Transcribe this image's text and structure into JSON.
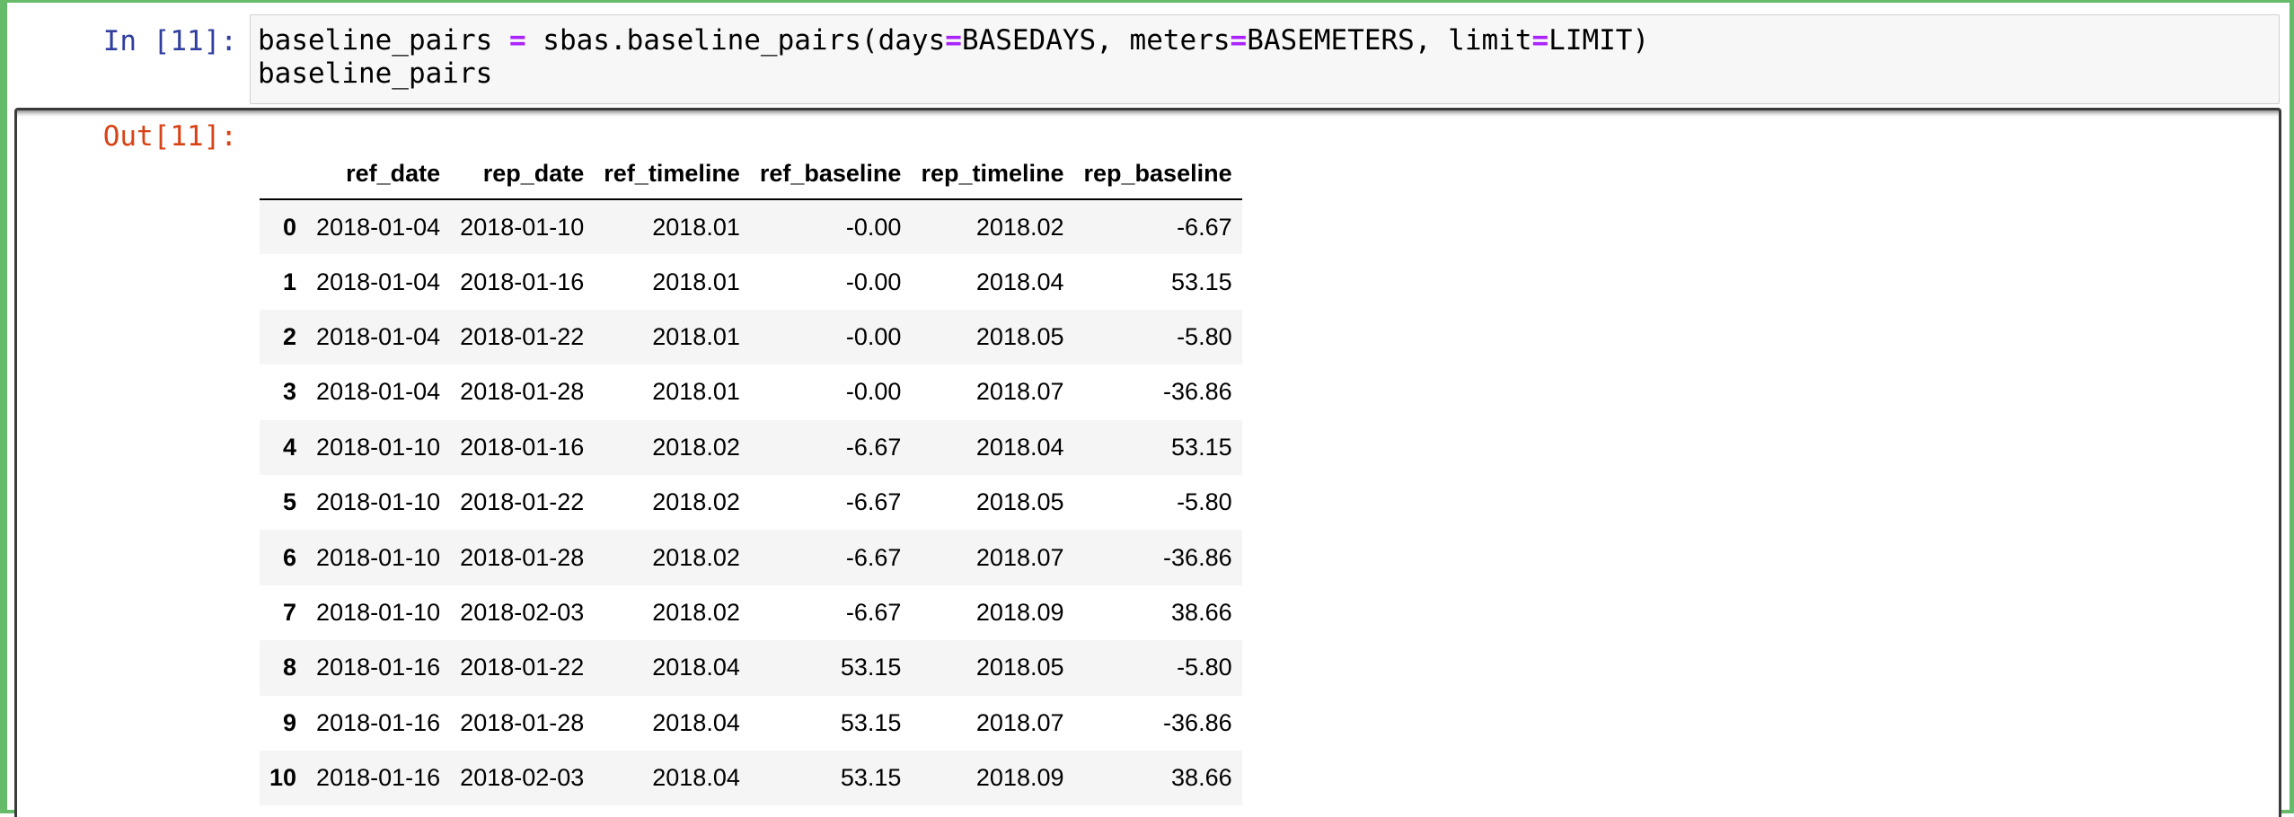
{
  "notebook": {
    "input_prompt": "In [11]:",
    "output_prompt": "Out[11]:",
    "code": {
      "line1": {
        "var": "baseline_pairs ",
        "eq1": "=",
        "call": " sbas.baseline_pairs(days",
        "eq2": "=",
        "arg1": "BASEDAYS, meters",
        "eq3": "=",
        "arg2": "BASEMETERS, limit",
        "eq4": "=",
        "arg3": "LIMIT)"
      },
      "line2": "baseline_pairs"
    }
  },
  "table": {
    "columns": [
      "",
      "ref_date",
      "rep_date",
      "ref_timeline",
      "ref_baseline",
      "rep_timeline",
      "rep_baseline"
    ],
    "rows": [
      [
        "0",
        "2018-01-04",
        "2018-01-10",
        "2018.01",
        "-0.00",
        "2018.02",
        "-6.67"
      ],
      [
        "1",
        "2018-01-04",
        "2018-01-16",
        "2018.01",
        "-0.00",
        "2018.04",
        "53.15"
      ],
      [
        "2",
        "2018-01-04",
        "2018-01-22",
        "2018.01",
        "-0.00",
        "2018.05",
        "-5.80"
      ],
      [
        "3",
        "2018-01-04",
        "2018-01-28",
        "2018.01",
        "-0.00",
        "2018.07",
        "-36.86"
      ],
      [
        "4",
        "2018-01-10",
        "2018-01-16",
        "2018.02",
        "-6.67",
        "2018.04",
        "53.15"
      ],
      [
        "5",
        "2018-01-10",
        "2018-01-22",
        "2018.02",
        "-6.67",
        "2018.05",
        "-5.80"
      ],
      [
        "6",
        "2018-01-10",
        "2018-01-28",
        "2018.02",
        "-6.67",
        "2018.07",
        "-36.86"
      ],
      [
        "7",
        "2018-01-10",
        "2018-02-03",
        "2018.02",
        "-6.67",
        "2018.09",
        "38.66"
      ],
      [
        "8",
        "2018-01-16",
        "2018-01-22",
        "2018.04",
        "53.15",
        "2018.05",
        "-5.80"
      ],
      [
        "9",
        "2018-01-16",
        "2018-01-28",
        "2018.04",
        "53.15",
        "2018.07",
        "-36.86"
      ],
      [
        "10",
        "2018-01-16",
        "2018-02-03",
        "2018.04",
        "53.15",
        "2018.09",
        "38.66"
      ]
    ]
  },
  "colors": {
    "cell_border_selected": "#66bb6a",
    "input_prompt": "#303f9f",
    "output_prompt": "#d84315",
    "operator": "#aa22ff",
    "input_background": "#f7f7f7",
    "striped_row": "#f5f5f5"
  }
}
